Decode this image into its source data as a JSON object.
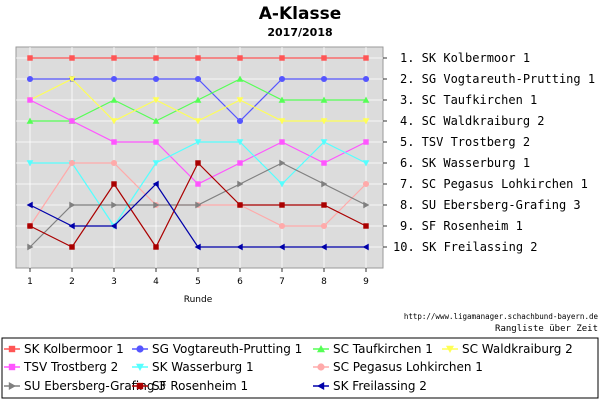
{
  "chart_data": {
    "type": "line",
    "title": "A-Klasse",
    "subtitle": "2017/2018",
    "xlabel": "Runde",
    "ylabel": "",
    "x": [
      1,
      2,
      3,
      4,
      5,
      6,
      7,
      8,
      9
    ],
    "ylim": [
      1,
      10
    ],
    "y_inverted": true,
    "grid": true,
    "plot_background": "#dcdcdc",
    "rank_labels": [
      "1. SK Kolbermoor 1",
      "2. SG Vogtareuth-Prutting 1",
      "3. SC Taufkirchen 1",
      "4. SC Waldkraiburg 2",
      "5. TSV Trostberg 2",
      "6. SK Wasserburg 1",
      "7. SC Pegasus Lohkirchen 1",
      "8. SU Ebersberg-Grafing 3",
      "9. SF Rosenheim 1",
      "10. SK Freilassing 2"
    ],
    "series": [
      {
        "name": "SK Kolbermoor 1",
        "color": "#ff5555",
        "marker": "square",
        "values": [
          1,
          1,
          1,
          1,
          1,
          1,
          1,
          1,
          1
        ]
      },
      {
        "name": "SG Vogtareuth-Prutting 1",
        "color": "#5555ff",
        "marker": "circle",
        "values": [
          2,
          2,
          2,
          2,
          2,
          4,
          2,
          2,
          2
        ]
      },
      {
        "name": "SC Taufkirchen 1",
        "color": "#55ff55",
        "marker": "triangle-up",
        "values": [
          4,
          4,
          3,
          4,
          3,
          2,
          3,
          3,
          3
        ]
      },
      {
        "name": "SC Waldkraiburg 2",
        "color": "#ffff55",
        "marker": "triangle-down",
        "values": [
          3,
          2,
          4,
          3,
          4,
          3,
          4,
          4,
          4
        ]
      },
      {
        "name": "TSV Trostberg 2",
        "color": "#ff55ff",
        "marker": "square",
        "values": [
          3,
          4,
          5,
          5,
          7,
          6,
          5,
          6,
          5
        ]
      },
      {
        "name": "SK Wasserburg 1",
        "color": "#55ffff",
        "marker": "triangle-down",
        "values": [
          6,
          6,
          9,
          6,
          5,
          5,
          7,
          5,
          6
        ]
      },
      {
        "name": "SC Pegasus Lohkirchen 1",
        "color": "#ffaaaa",
        "marker": "circle",
        "values": [
          9,
          6,
          6,
          8,
          8,
          8,
          9,
          9,
          7
        ]
      },
      {
        "name": "SU Ebersberg-Grafing 3",
        "color": "#808080",
        "marker": "triangle-right",
        "values": [
          10,
          8,
          8,
          8,
          8,
          7,
          6,
          7,
          8
        ]
      },
      {
        "name": "SF Rosenheim 1",
        "color": "#aa0000",
        "marker": "square",
        "values": [
          9,
          10,
          7,
          10,
          6,
          8,
          8,
          8,
          9
        ]
      },
      {
        "name": "SK Freilassing 2",
        "color": "#0000aa",
        "marker": "triangle-left",
        "values": [
          8,
          9,
          9,
          7,
          10,
          10,
          10,
          10,
          10
        ]
      }
    ],
    "source_text": "http://www.ligamanager.schachbund-bayern.de",
    "footer_text": "Rangliste über Zeit",
    "legend_position": "bottom"
  }
}
